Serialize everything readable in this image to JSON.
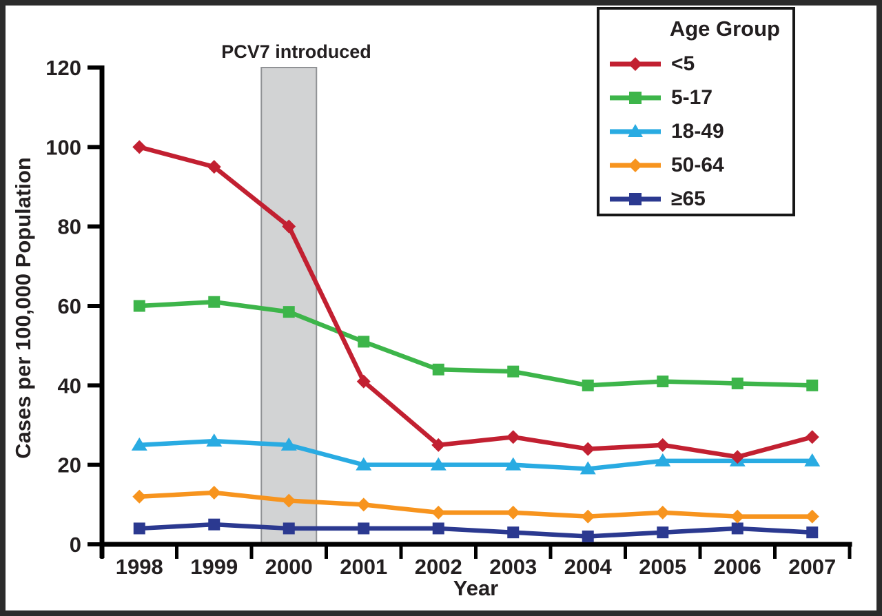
{
  "figure": {
    "background": "#ffffff",
    "frame_color": "#2b2b2b",
    "text_color": "#231f20",
    "axis_color": "#000000"
  },
  "chart_data": {
    "type": "line",
    "title": "",
    "xlabel": "Year",
    "ylabel": "Cases per 100,000 Population",
    "x": [
      1998,
      1999,
      2000,
      2001,
      2002,
      2003,
      2004,
      2005,
      2006,
      2007
    ],
    "ylim": [
      0,
      120
    ],
    "yticks": [
      0,
      20,
      40,
      60,
      80,
      100,
      120
    ],
    "grid": false,
    "legend_title": "Age Group",
    "legend_position": "top-right",
    "annotation_band": {
      "label": "PCV7 introduced",
      "center_year": 2000,
      "from": 0,
      "to": 120,
      "fill": "#d2d3d4",
      "border": "#909295"
    },
    "series": [
      {
        "name": "<5",
        "marker": "diamond",
        "color": "#c22031",
        "values": [
          100,
          95,
          80,
          41,
          25,
          27,
          24,
          25,
          22,
          27
        ]
      },
      {
        "name": "5-17",
        "marker": "square",
        "color": "#3db54a",
        "values": [
          60,
          61,
          58.5,
          51,
          44,
          43.5,
          40,
          41,
          40.5,
          40
        ]
      },
      {
        "name": "18-49",
        "marker": "triangle",
        "color": "#29abe2",
        "values": [
          25,
          26,
          25,
          20,
          20,
          20,
          19,
          21,
          21,
          21
        ]
      },
      {
        "name": "50-64",
        "marker": "diamond",
        "color": "#f7941e",
        "values": [
          12,
          13,
          11,
          10,
          8,
          8,
          7,
          8,
          7,
          7
        ]
      },
      {
        "name": "≥65",
        "marker": "square",
        "color": "#2b3990",
        "values": [
          4,
          5,
          4,
          4,
          4,
          3,
          2,
          3,
          4,
          3
        ]
      }
    ]
  }
}
